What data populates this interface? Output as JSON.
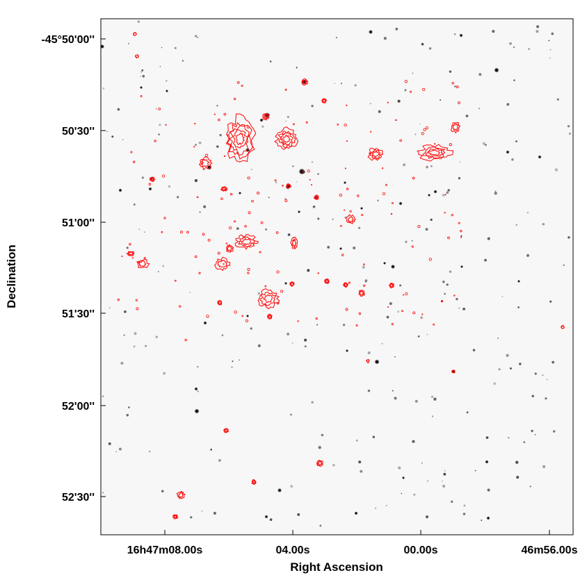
{
  "figure": {
    "ylabel": "Declination",
    "xlabel": "Right Ascension",
    "y_ticks": [
      "-45°50'00''",
      "50'30''",
      "51'00''",
      "51'30''",
      "52'00''",
      "52'30''"
    ],
    "x_ticks": [
      "16h47m08.00s",
      "04.00s",
      "00.00s",
      "46m56.00s"
    ],
    "contour_color": "#ff0000",
    "star_color": "#000000",
    "background_color": "#f7f7f7"
  }
}
